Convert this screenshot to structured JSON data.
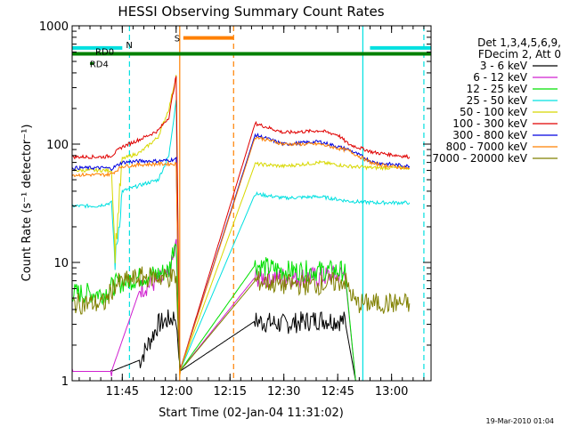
{
  "chart_data": {
    "type": "line",
    "title": "HESSI Observing Summary Count Rates",
    "xlabel": "Start Time (02-Jan-04 11:31:02)",
    "ylabel": "Count Rate (s⁻¹ detector⁻¹)",
    "y_scale": "log",
    "ylim": [
      1,
      1000
    ],
    "xlim": [
      "11:31:02",
      "13:11:00"
    ],
    "x_ticks": [
      "11:45",
      "12:00",
      "12:15",
      "12:30",
      "12:45",
      "13:00"
    ],
    "y_ticks": [
      "1",
      "10",
      "100",
      "1000"
    ],
    "legend_position": "right",
    "legend_header": [
      "Det 1,3,4,5,6,9,",
      "FDecim 2, Att 0"
    ],
    "series": [
      {
        "name": "3 - 6 keV",
        "color": "#000000",
        "x": [
          "11:31",
          "11:42",
          "11:50",
          "11:55",
          "11:58",
          "12:00",
          "12:01",
          "12:22",
          "12:30",
          "12:40",
          "12:47",
          "12:50"
        ],
        "y": [
          1.2,
          1.2,
          1.5,
          3.0,
          3.3,
          3.5,
          1.2,
          3.2,
          3.0,
          3.3,
          3.2,
          1.0
        ]
      },
      {
        "name": "6 - 12 keV",
        "color": "#d020d0",
        "x": [
          "11:31",
          "11:42",
          "11:50",
          "11:55",
          "11:58",
          "12:00",
          "12:01",
          "12:22",
          "12:30",
          "12:40",
          "12:47",
          "12:50"
        ],
        "y": [
          1.2,
          1.2,
          6.0,
          7.0,
          7.5,
          14,
          1.2,
          7.5,
          7.5,
          7.5,
          8.0,
          1.0
        ]
      },
      {
        "name": "12 - 25 keV",
        "color": "#00e000",
        "x": [
          "11:31",
          "11:40",
          "11:43",
          "11:50",
          "11:55",
          "11:58",
          "12:00",
          "12:01",
          "12:22",
          "12:30",
          "12:40",
          "12:47",
          "12:50"
        ],
        "y": [
          5.5,
          5.5,
          6.5,
          7.5,
          8.0,
          8.5,
          17,
          1.2,
          9.5,
          8.5,
          8.5,
          8.5,
          1.0
        ]
      },
      {
        "name": "25 - 50 keV",
        "color": "#00e0e0",
        "x": [
          "11:31",
          "11:38",
          "11:42",
          "11:43",
          "11:45",
          "11:50",
          "11:55",
          "11:58",
          "12:00",
          "12:01",
          "12:22",
          "12:30",
          "12:40",
          "12:48",
          "12:55",
          "13:05"
        ],
        "y": [
          30,
          30,
          32,
          10,
          40,
          45,
          50,
          80,
          240,
          1.2,
          38,
          35,
          36,
          33,
          32,
          32
        ]
      },
      {
        "name": "50 - 100 keV",
        "color": "#d8d800",
        "x": [
          "11:31",
          "11:40",
          "11:42",
          "11:43",
          "11:45",
          "11:50",
          "11:55",
          "11:58",
          "12:00",
          "12:01",
          "12:22",
          "12:30",
          "12:40",
          "12:48",
          "12:55",
          "13:05"
        ],
        "y": [
          60,
          60,
          60,
          12,
          75,
          85,
          115,
          200,
          380,
          1.2,
          68,
          65,
          70,
          65,
          63,
          63
        ]
      },
      {
        "name": "100 - 300 keV",
        "color": "#e00000",
        "x": [
          "11:31",
          "11:40",
          "11:42",
          "11:45",
          "11:50",
          "11:55",
          "11:58",
          "12:00",
          "12:01",
          "12:22",
          "12:30",
          "12:40",
          "12:45",
          "12:48",
          "12:55",
          "13:05"
        ],
        "y": [
          78,
          78,
          80,
          95,
          110,
          130,
          170,
          380,
          1.2,
          150,
          125,
          130,
          120,
          100,
          85,
          78
        ]
      },
      {
        "name": "300 - 800 keV",
        "color": "#0000e0",
        "x": [
          "11:31",
          "11:40",
          "11:42",
          "11:45",
          "11:50",
          "11:55",
          "11:58",
          "12:00",
          "12:01",
          "12:22",
          "12:30",
          "12:40",
          "12:48",
          "12:55",
          "13:05"
        ],
        "y": [
          63,
          63,
          62,
          70,
          72,
          72,
          73,
          75,
          1.2,
          120,
          100,
          105,
          90,
          70,
          65
        ]
      },
      {
        "name": "800 - 7000 keV",
        "color": "#ff8000",
        "x": [
          "11:31",
          "11:40",
          "11:42",
          "11:45",
          "11:50",
          "11:55",
          "11:58",
          "12:00",
          "12:01",
          "12:22",
          "12:30",
          "12:40",
          "12:48",
          "12:55",
          "13:05"
        ],
        "y": [
          55,
          55,
          56,
          65,
          67,
          68,
          68,
          68,
          1.2,
          115,
          100,
          100,
          88,
          68,
          62
        ]
      },
      {
        "name": "7000 - 20000 keV",
        "color": "#808000",
        "x": [
          "11:31",
          "11:40",
          "11:43",
          "11:50",
          "11:55",
          "11:58",
          "12:00",
          "12:01",
          "12:22",
          "12:30",
          "12:40",
          "12:47",
          "12:50",
          "12:55",
          "13:05"
        ],
        "y": [
          4.5,
          4.5,
          6.5,
          7.5,
          7.5,
          7.5,
          7.5,
          1.2,
          7.0,
          6.5,
          6.5,
          7.0,
          4.5,
          4.5,
          4.5
        ]
      }
    ],
    "flags": [
      {
        "label": "N",
        "color": "#00e0e0",
        "segments": [
          [
            "11:31",
            "11:45"
          ],
          [
            "12:54",
            "13:11"
          ]
        ]
      },
      {
        "label": "S",
        "color": "#ff8000",
        "segments": [
          [
            "12:02",
            "12:16"
          ]
        ]
      },
      {
        "label": "RD0",
        "color": "#008000",
        "segments": [
          [
            "11:31",
            "13:11"
          ]
        ]
      },
      {
        "label": "RD4",
        "color": "#008000",
        "segments": [
          [
            "11:36",
            "11:37"
          ]
        ]
      }
    ],
    "vertical_lines": [
      {
        "time": "11:31",
        "color": "#00e0e0",
        "style": "solid"
      },
      {
        "time": "11:47",
        "color": "#00e0e0",
        "style": "dashed"
      },
      {
        "time": "12:01",
        "color": "#ff8000",
        "style": "solid"
      },
      {
        "time": "12:16",
        "color": "#ff8000",
        "style": "dashed"
      },
      {
        "time": "12:52",
        "color": "#00e0e0",
        "style": "solid"
      },
      {
        "time": "13:09",
        "color": "#00e0e0",
        "style": "dashed"
      }
    ],
    "footer_date": "19-Mar-2010 01:04"
  }
}
